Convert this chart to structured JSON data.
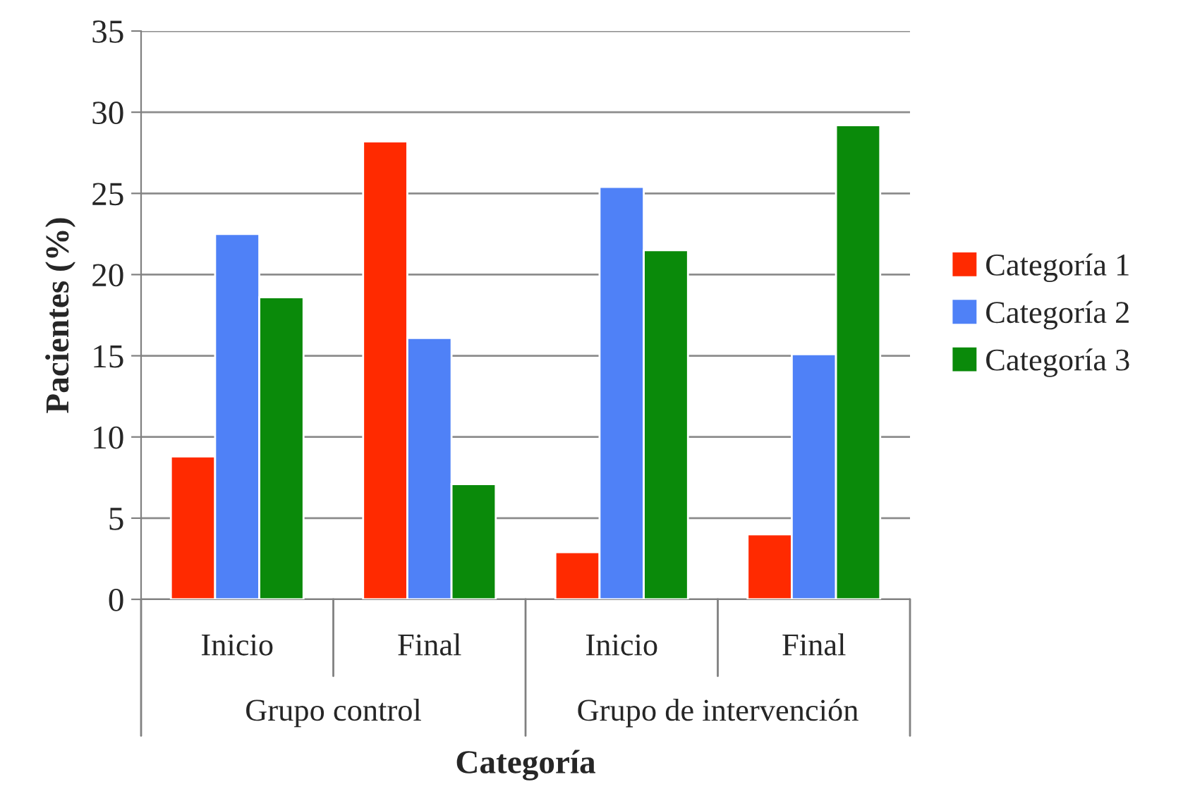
{
  "chart_data": {
    "type": "bar",
    "xlabel": "Categoría",
    "ylabel": "Pacientes (%)",
    "categories": [
      "Inicio",
      "Final",
      "Inicio",
      "Final"
    ],
    "annotations": [
      "Grupo control",
      "Grupo de intervención"
    ],
    "series": [
      {
        "name": "Categoría 1",
        "color": "#ff2a00",
        "values": [
          8.8,
          28.2,
          2.9,
          4.0
        ]
      },
      {
        "name": "Categoría 2",
        "color": "#4f81f7",
        "values": [
          22.5,
          16.1,
          25.4,
          15.1
        ]
      },
      {
        "name": "Categoría 3",
        "color": "#0a8a0a",
        "values": [
          18.6,
          7.1,
          21.5,
          29.2
        ]
      }
    ],
    "ylim": [
      0,
      35
    ],
    "yticks": [
      0,
      5,
      10,
      15,
      20,
      25,
      30,
      35
    ],
    "grid": "y",
    "legend": "right"
  }
}
